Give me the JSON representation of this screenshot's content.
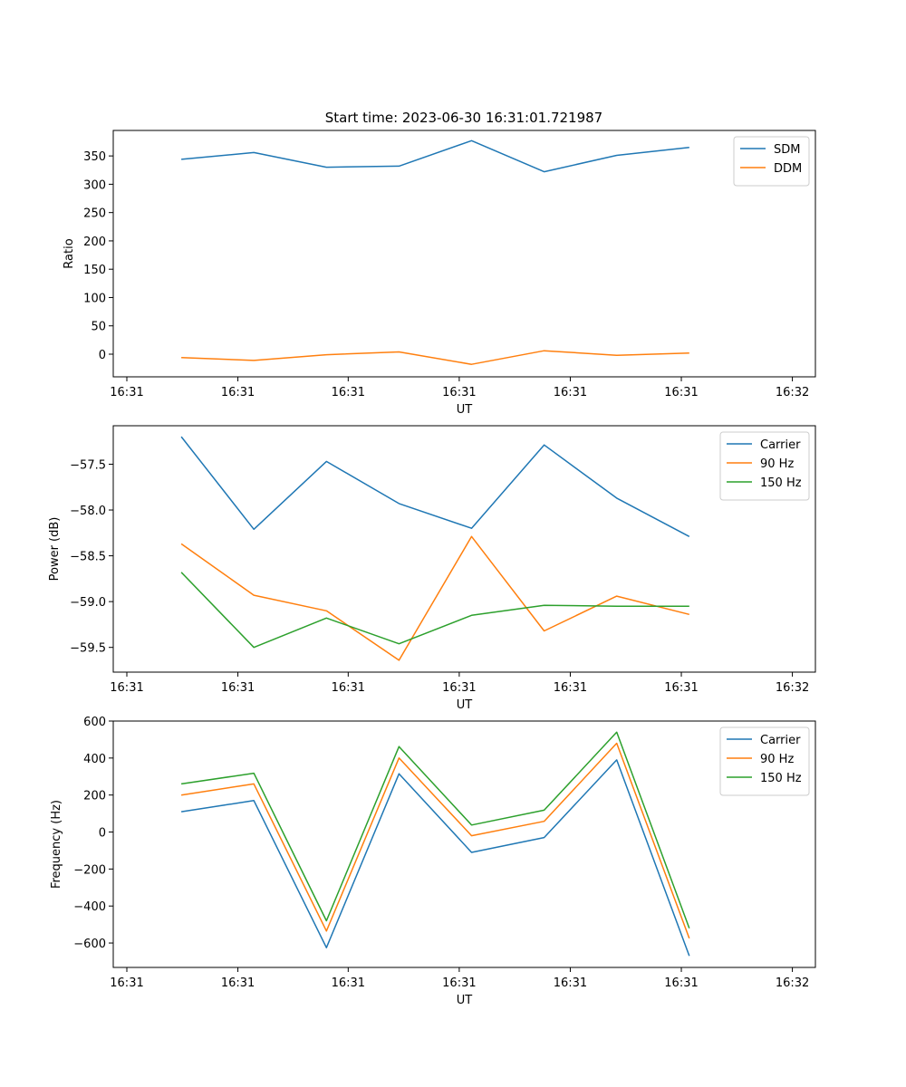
{
  "figure_title": "Start time: 2023-06-30 16:31:01.721987",
  "chart_data": [
    {
      "type": "line",
      "title": "Start time: 2023-06-30 16:31:01.721987",
      "xlabel": "UT",
      "ylabel": "Ratio",
      "x_tick_labels": [
        "16:31",
        "16:31",
        "16:31",
        "16:31",
        "16:31",
        "16:31",
        "16:32"
      ],
      "y_ticks": [
        0,
        50,
        100,
        150,
        200,
        250,
        300,
        350
      ],
      "ylim": [
        -40,
        395
      ],
      "legend": "upper right",
      "series": [
        {
          "name": "SDM",
          "color": "#1f77b4",
          "values": [
            344,
            356,
            330,
            332,
            377,
            322,
            351,
            365
          ]
        },
        {
          "name": "DDM",
          "color": "#ff7f0e",
          "values": [
            -6,
            -11,
            -1,
            4,
            -18,
            6,
            -2,
            2
          ]
        }
      ]
    },
    {
      "type": "line",
      "title": "",
      "xlabel": "UT",
      "ylabel": "Power (dB)",
      "x_tick_labels": [
        "16:31",
        "16:31",
        "16:31",
        "16:31",
        "16:31",
        "16:31",
        "16:32"
      ],
      "y_ticks": [
        -57.5,
        -58.0,
        -58.5,
        -59.0,
        -59.5
      ],
      "y_tick_labels": [
        "−57.5",
        "−58.0",
        "−58.5",
        "−59.0",
        "−59.5"
      ],
      "ylim": [
        -59.77,
        -57.08
      ],
      "legend": "upper right",
      "series": [
        {
          "name": "Carrier",
          "color": "#1f77b4",
          "values": [
            -57.2,
            -58.21,
            -57.47,
            -57.93,
            -58.2,
            -57.29,
            -57.87,
            -58.29
          ]
        },
        {
          "name": "90 Hz",
          "color": "#ff7f0e",
          "values": [
            -58.37,
            -58.93,
            -59.1,
            -59.64,
            -58.29,
            -59.32,
            -58.94,
            -59.14
          ]
        },
        {
          "name": "150 Hz",
          "color": "#2ca02c",
          "values": [
            -58.68,
            -59.5,
            -59.18,
            -59.46,
            -59.15,
            -59.04,
            -59.05,
            -59.05
          ]
        }
      ]
    },
    {
      "type": "line",
      "title": "",
      "xlabel": "UT",
      "ylabel": "Frequency (Hz)",
      "x_tick_labels": [
        "16:31",
        "16:31",
        "16:31",
        "16:31",
        "16:31",
        "16:31",
        "16:32"
      ],
      "y_ticks": [
        600,
        400,
        200,
        0,
        -200,
        -400,
        -600
      ],
      "y_tick_labels": [
        "600",
        "400",
        "200",
        "0",
        "−200",
        "−400",
        "−600"
      ],
      "ylim": [
        -732,
        600
      ],
      "legend": "upper right",
      "series": [
        {
          "name": "Carrier",
          "color": "#1f77b4",
          "values": [
            110,
            170,
            -625,
            315,
            -110,
            -30,
            390,
            -670
          ]
        },
        {
          "name": "90 Hz",
          "color": "#ff7f0e",
          "values": [
            200,
            260,
            -535,
            400,
            -20,
            58,
            480,
            -575
          ]
        },
        {
          "name": "150 Hz",
          "color": "#2ca02c",
          "values": [
            260,
            318,
            -480,
            462,
            38,
            118,
            540,
            -520
          ]
        }
      ]
    }
  ]
}
